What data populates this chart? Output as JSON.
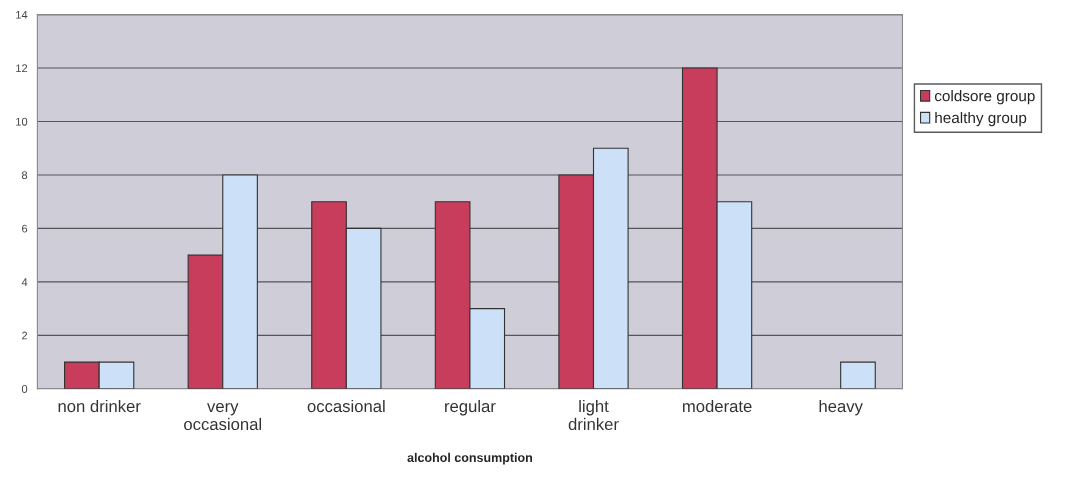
{
  "chart_data": {
    "type": "bar",
    "xlabel": "alcohol consumption",
    "categories": [
      "non drinker",
      "very\noccasional",
      "occasional",
      "regular",
      "light\ndrinker",
      "moderate",
      "heavy"
    ],
    "series": [
      {
        "name": "coldsore group",
        "color": "#c83c5c",
        "values": [
          1,
          5,
          7,
          7,
          8,
          12,
          null
        ]
      },
      {
        "name": "healthy group",
        "color": "#cce0f8",
        "values": [
          1,
          8,
          6,
          3,
          9,
          7,
          1
        ]
      }
    ],
    "ylim": [
      0,
      14
    ],
    "yticks": [
      0,
      2,
      4,
      6,
      8,
      10,
      12,
      14
    ],
    "grid": "y",
    "legend": "right"
  }
}
